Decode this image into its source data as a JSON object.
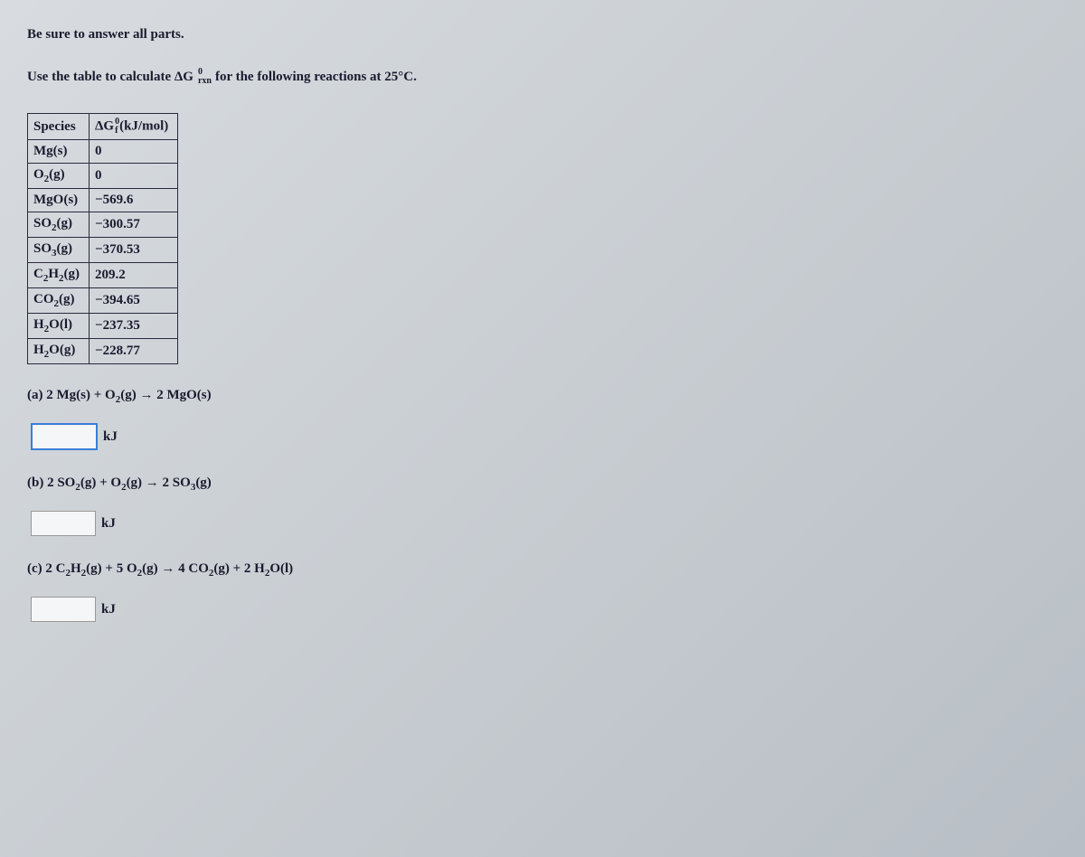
{
  "instruction": "Be sure to answer all parts.",
  "prompt_prefix": "Use the table to calculate ΔG",
  "prompt_sup": "0",
  "prompt_sub": "rxn",
  "prompt_suffix": " for the following reactions at 25°C.",
  "table": {
    "header_species": "Species",
    "header_dg_base": "ΔG",
    "header_dg_sup": "0",
    "header_dg_sub": "f",
    "header_dg_unit": "(kJ/mol)",
    "rows": [
      {
        "species_html": "Mg(s)",
        "value": "0"
      },
      {
        "species_html": "O<sub>2</sub>(g)",
        "value": "0"
      },
      {
        "species_html": "MgO(s)",
        "value": "−569.6"
      },
      {
        "species_html": "SO<sub>2</sub>(g)",
        "value": "−300.57"
      },
      {
        "species_html": "SO<sub>3</sub>(g)",
        "value": "−370.53"
      },
      {
        "species_html": "C<sub>2</sub>H<sub>2</sub>(g)",
        "value": "209.2"
      },
      {
        "species_html": "CO<sub>2</sub>(g)",
        "value": "−394.65"
      },
      {
        "species_html": "H<sub>2</sub>O(l)",
        "value": "−237.35"
      },
      {
        "species_html": "H<sub>2</sub>O(g)",
        "value": "−228.77"
      }
    ]
  },
  "questions": {
    "a": {
      "label": "(a) 2 Mg(s) + O<sub>2</sub>(g) → 2 MgO(s)",
      "active": true
    },
    "b": {
      "label": "(b) 2 SO<sub>2</sub>(g) + O<sub>2</sub>(g) → 2 SO<sub>3</sub>(g)",
      "active": false
    },
    "c": {
      "label": "(c) 2 C<sub>2</sub>H<sub>2</sub>(g) + 5 O<sub>2</sub>(g) → 4 CO<sub>2</sub>(g) + 2 H<sub>2</sub>O(l)",
      "active": false
    }
  },
  "unit_label": "kJ",
  "colors": {
    "border": "#2a2a3a",
    "text": "#1a1a2e",
    "active_input_border": "#3b7dd8",
    "input_bg": "#f5f6f7"
  }
}
